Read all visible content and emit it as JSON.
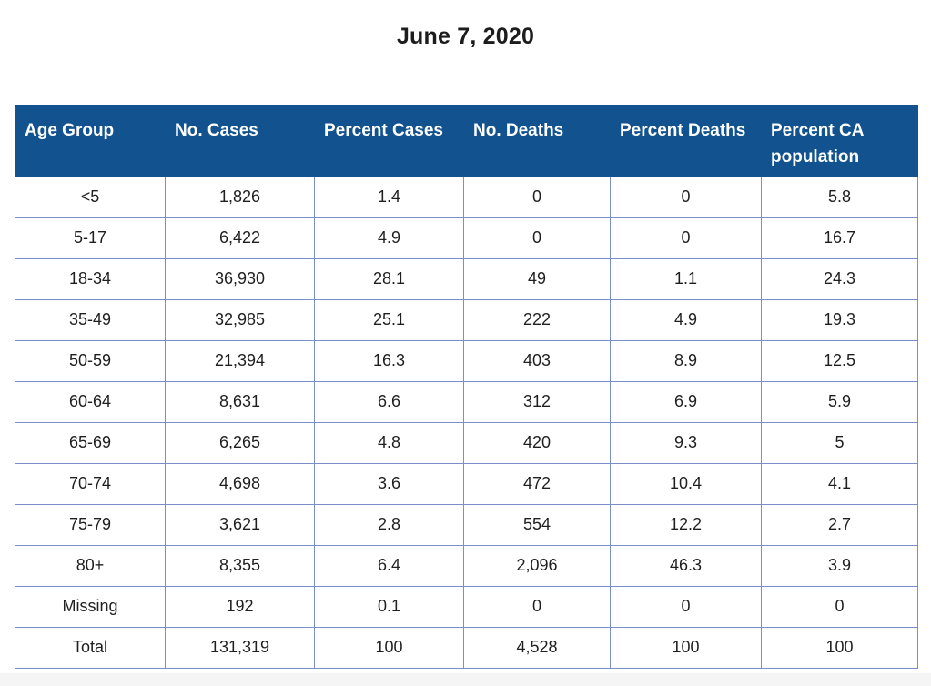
{
  "title": "June 7, 2020",
  "chart_data": {
    "type": "table",
    "title": "June 7, 2020",
    "columns": [
      "Age Group",
      "No. Cases",
      "Percent Cases",
      "No. Deaths",
      "Percent Deaths",
      "Percent CA population"
    ],
    "rows": [
      [
        "<5",
        "1,826",
        "1.4",
        "0",
        "0",
        "5.8"
      ],
      [
        "5-17",
        "6,422",
        "4.9",
        "0",
        "0",
        "16.7"
      ],
      [
        "18-34",
        "36,930",
        "28.1",
        "49",
        "1.1",
        "24.3"
      ],
      [
        "35-49",
        "32,985",
        "25.1",
        "222",
        "4.9",
        "19.3"
      ],
      [
        "50-59",
        "21,394",
        "16.3",
        "403",
        "8.9",
        "12.5"
      ],
      [
        "60-64",
        "8,631",
        "6.6",
        "312",
        "6.9",
        "5.9"
      ],
      [
        "65-69",
        "6,265",
        "4.8",
        "420",
        "9.3",
        "5"
      ],
      [
        "70-74",
        "4,698",
        "3.6",
        "472",
        "10.4",
        "4.1"
      ],
      [
        "75-79",
        "3,621",
        "2.8",
        "554",
        "12.2",
        "2.7"
      ],
      [
        "80+",
        "8,355",
        "6.4",
        "2,096",
        "46.3",
        "3.9"
      ],
      [
        "Missing",
        "192",
        "0.1",
        "0",
        "0",
        "0"
      ],
      [
        "Total",
        "131,319",
        "100",
        "4,528",
        "100",
        "100"
      ]
    ]
  },
  "colors": {
    "header_bg": "#12528F",
    "header_text": "#FFFFFF",
    "border": "#7A8EC9",
    "cell_text": "#1F1F1F"
  }
}
